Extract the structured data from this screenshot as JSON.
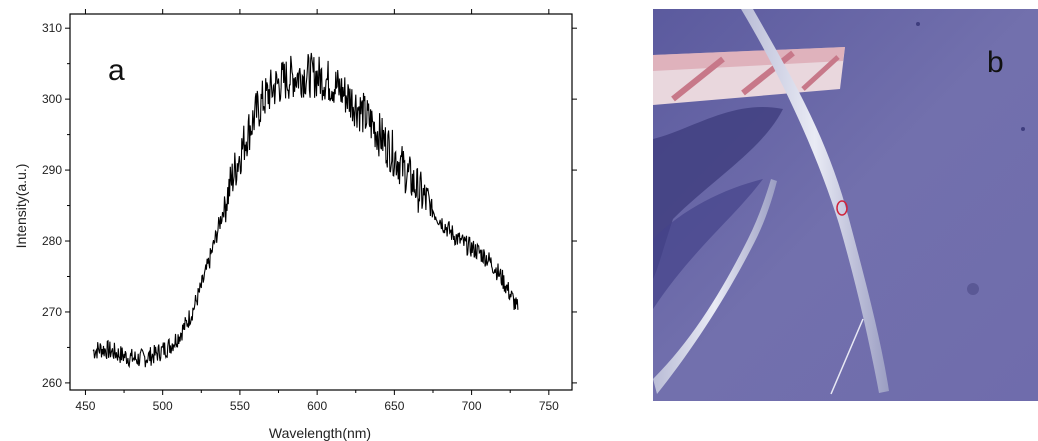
{
  "panels": {
    "chart_label": "a",
    "photo_label": "b"
  },
  "colors": {
    "series": "#000000",
    "photo_background": "#6d6aa8",
    "marker": "#d0243c"
  },
  "photo": {
    "description_icon": "optical-micrograph-icon"
  },
  "chart_data": {
    "type": "line",
    "title": "",
    "xlabel": "Wavelength(nm)",
    "ylabel": "Intensity(a.u.)",
    "xlim": [
      440,
      765
    ],
    "ylim": [
      259,
      312
    ],
    "xticks": [
      450,
      500,
      550,
      600,
      650,
      700,
      750
    ],
    "yticks": [
      260,
      270,
      280,
      290,
      300,
      310
    ],
    "grid": false,
    "series": [
      {
        "x": [
          455,
          460,
          465,
          470,
          475,
          480,
          485,
          490,
          495,
          500,
          505,
          510,
          515,
          520,
          525,
          530,
          535,
          540,
          545,
          550,
          555,
          560,
          565,
          570,
          575,
          580,
          585,
          590,
          595,
          600,
          605,
          610,
          615,
          620,
          625,
          630,
          635,
          640,
          645,
          650,
          655,
          660,
          665,
          670,
          675,
          680,
          685,
          690,
          695,
          700,
          705,
          710,
          715,
          720,
          725,
          730
        ],
        "y": [
          264.5,
          264.8,
          264.6,
          264.2,
          263.8,
          263.5,
          263.4,
          263.6,
          264.0,
          264.6,
          265.3,
          266.5,
          268.2,
          270.5,
          273.5,
          277.0,
          281.0,
          285.0,
          288.8,
          292.2,
          295.2,
          297.8,
          299.8,
          301.2,
          302.2,
          302.8,
          303.2,
          303.4,
          303.4,
          303.2,
          302.8,
          302.2,
          301.3,
          300.3,
          299.2,
          297.9,
          296.6,
          295.1,
          293.6,
          292.1,
          290.5,
          288.9,
          287.3,
          285.8,
          284.3,
          282.9,
          281.6,
          280.5,
          279.6,
          279.0,
          278.4,
          277.6,
          276.3,
          274.6,
          272.5,
          270.3
        ]
      }
    ]
  }
}
